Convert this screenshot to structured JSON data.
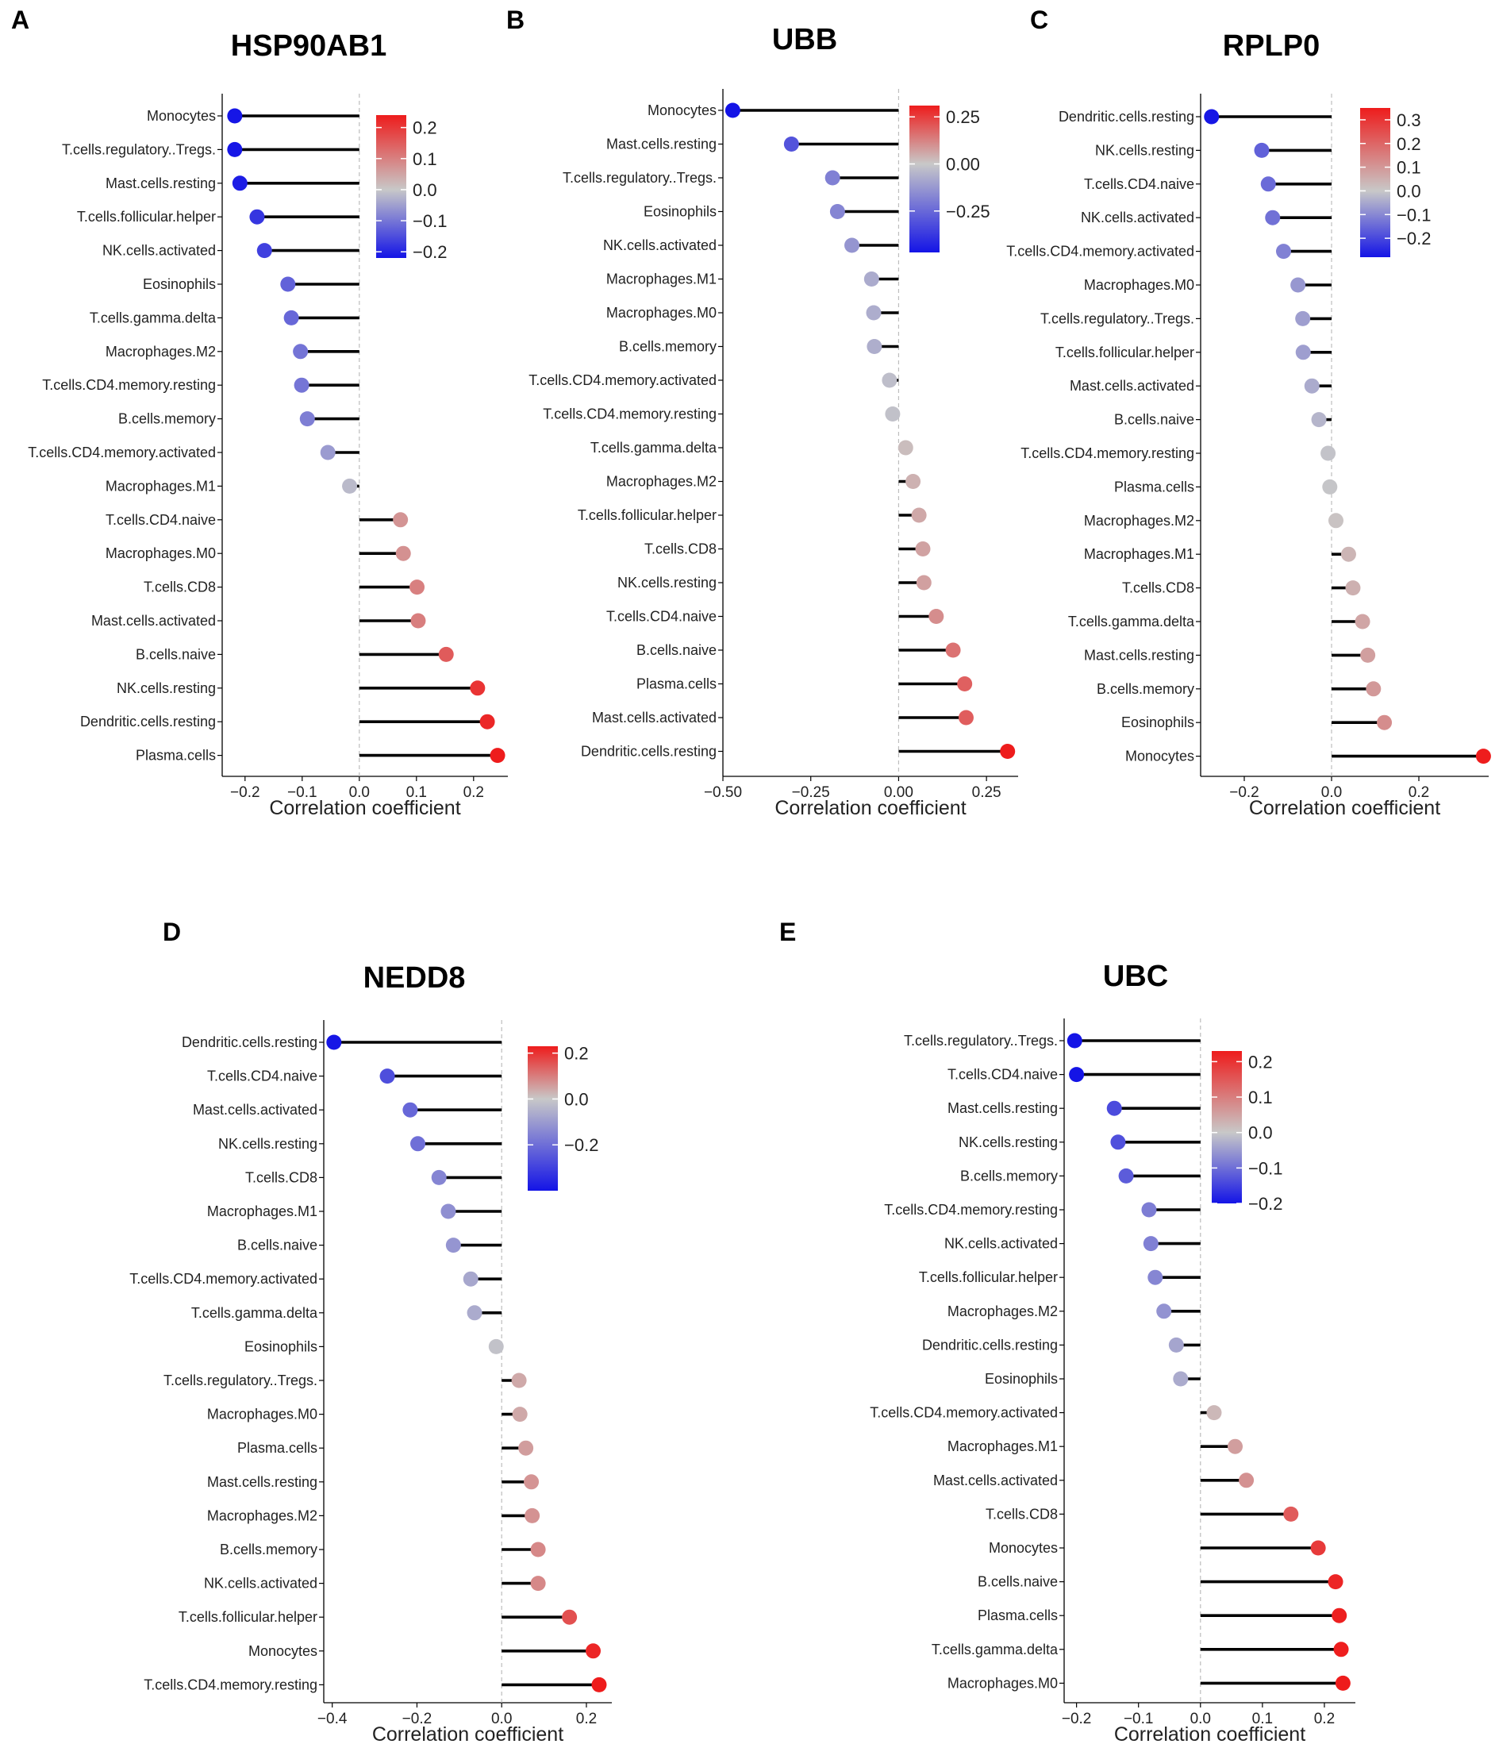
{
  "xlabel": "Correlation coefficient",
  "colors": {
    "low": "#1414e6",
    "mid": "#c8c8c8",
    "high": "#ee1c1c",
    "stick": "#000000",
    "zero_line": "#bdbdbd"
  },
  "chart_data": [
    {
      "panel": "A",
      "type": "lollipop",
      "title": "HSP90AB1",
      "xlim": [
        -0.24,
        0.26
      ],
      "xticks": [
        -0.2,
        -0.1,
        0.0,
        0.1,
        0.2
      ],
      "xtick_labels": [
        "−0.2",
        "−0.1",
        "0.0",
        "0.1",
        "0.2"
      ],
      "color_range": [
        -0.22,
        0.24
      ],
      "legend_ticks": [
        0.2,
        0.1,
        0.0,
        -0.1,
        -0.2
      ],
      "legend_labels": [
        "0.2",
        "0.1",
        "0.0",
        "−0.1",
        "−0.2"
      ],
      "legend_placement": "top-right",
      "categories": [
        "Monocytes",
        "T.cells.regulatory..Tregs.",
        "Mast.cells.resting",
        "T.cells.follicular.helper",
        "NK.cells.activated",
        "Eosinophils",
        "T.cells.gamma.delta",
        "Macrophages.M2",
        "T.cells.CD4.memory.resting",
        "B.cells.memory",
        "T.cells.CD4.memory.activated",
        "Macrophages.M1",
        "T.cells.CD4.naive",
        "Macrophages.M0",
        "T.cells.CD8",
        "Mast.cells.activated",
        "B.cells.naive",
        "NK.cells.resting",
        "Dendritic.cells.resting",
        "Plasma.cells"
      ],
      "values": [
        -0.218,
        -0.218,
        -0.209,
        -0.179,
        -0.166,
        -0.125,
        -0.119,
        -0.103,
        -0.101,
        -0.091,
        -0.055,
        -0.017,
        0.072,
        0.077,
        0.101,
        0.103,
        0.152,
        0.207,
        0.224,
        0.242
      ]
    },
    {
      "panel": "B",
      "type": "lollipop",
      "title": "UBB",
      "xlim": [
        -0.5,
        0.34
      ],
      "xticks": [
        -0.5,
        -0.25,
        0.0,
        0.25
      ],
      "xtick_labels": [
        "−0.50",
        "−0.25",
        "0.00",
        "0.25"
      ],
      "color_range": [
        -0.47,
        0.31
      ],
      "legend_ticks": [
        0.25,
        0.0,
        -0.25
      ],
      "legend_labels": [
        "0.25",
        "0.00",
        "−0.25"
      ],
      "legend_placement": "top-right",
      "categories": [
        "Monocytes",
        "Mast.cells.resting",
        "T.cells.regulatory..Tregs.",
        "Eosinophils",
        "NK.cells.activated",
        "Macrophages.M1",
        "Macrophages.M0",
        "B.cells.memory",
        "T.cells.CD4.memory.activated",
        "T.cells.CD4.memory.resting",
        "T.cells.gamma.delta",
        "Macrophages.M2",
        "T.cells.follicular.helper",
        "T.cells.CD8",
        "NK.cells.resting",
        "T.cells.CD4.naive",
        "B.cells.naive",
        "Plasma.cells",
        "Mast.cells.activated",
        "Dendritic.cells.resting"
      ],
      "values": [
        -0.472,
        -0.305,
        -0.188,
        -0.174,
        -0.133,
        -0.077,
        -0.071,
        -0.069,
        -0.026,
        -0.017,
        0.02,
        0.041,
        0.058,
        0.069,
        0.072,
        0.107,
        0.155,
        0.188,
        0.192,
        0.31
      ]
    },
    {
      "panel": "C",
      "type": "lollipop",
      "title": "RPLP0",
      "xlim": [
        -0.3,
        0.36
      ],
      "xticks": [
        -0.2,
        0.0,
        0.2
      ],
      "xtick_labels": [
        "−0.2",
        "0.0",
        "0.2"
      ],
      "color_range": [
        -0.28,
        0.35
      ],
      "legend_ticks": [
        0.3,
        0.2,
        0.1,
        0.0,
        -0.1,
        -0.2
      ],
      "legend_labels": [
        "0.3",
        "0.2",
        "0.1",
        "0.0",
        "−0.1",
        "−0.2"
      ],
      "legend_placement": "top-right",
      "categories": [
        "Dendritic.cells.resting",
        "NK.cells.resting",
        "T.cells.CD4.naive",
        "NK.cells.activated",
        "T.cells.CD4.memory.activated",
        "Macrophages.M0",
        "T.cells.regulatory..Tregs.",
        "T.cells.follicular.helper",
        "Mast.cells.activated",
        "B.cells.naive",
        "T.cells.CD4.memory.resting",
        "Plasma.cells",
        "Macrophages.M2",
        "Macrophages.M1",
        "T.cells.CD8",
        "T.cells.gamma.delta",
        "Mast.cells.resting",
        "B.cells.memory",
        "Eosinophils",
        "Monocytes"
      ],
      "values": [
        -0.275,
        -0.16,
        -0.145,
        -0.135,
        -0.11,
        -0.077,
        -0.066,
        -0.065,
        -0.045,
        -0.029,
        -0.008,
        -0.004,
        0.01,
        0.039,
        0.049,
        0.071,
        0.083,
        0.096,
        0.121,
        0.348
      ]
    },
    {
      "panel": "D",
      "type": "lollipop",
      "title": "NEDD8",
      "xlim": [
        -0.42,
        0.26
      ],
      "xticks": [
        -0.4,
        -0.2,
        0.0,
        0.2
      ],
      "xtick_labels": [
        "−0.4",
        "−0.2",
        "0.0",
        "0.2"
      ],
      "color_range": [
        -0.4,
        0.23
      ],
      "legend_ticks": [
        0.2,
        0.0,
        -0.2
      ],
      "legend_labels": [
        "0.2",
        "0.0",
        "−0.2"
      ],
      "legend_placement": "top-right",
      "categories": [
        "Dendritic.cells.resting",
        "T.cells.CD4.naive",
        "Mast.cells.activated",
        "NK.cells.resting",
        "T.cells.CD8",
        "Macrophages.M1",
        "B.cells.naive",
        "T.cells.CD4.memory.activated",
        "T.cells.gamma.delta",
        "Eosinophils",
        "T.cells.regulatory..Tregs.",
        "Macrophages.M0",
        "Plasma.cells",
        "Mast.cells.resting",
        "Macrophages.M2",
        "B.cells.memory",
        "NK.cells.activated",
        "T.cells.follicular.helper",
        "Monocytes",
        "T.cells.CD4.memory.resting"
      ],
      "values": [
        -0.396,
        -0.27,
        -0.216,
        -0.198,
        -0.148,
        -0.126,
        -0.114,
        -0.073,
        -0.064,
        -0.013,
        0.041,
        0.043,
        0.057,
        0.07,
        0.072,
        0.086,
        0.086,
        0.16,
        0.216,
        0.23
      ]
    },
    {
      "panel": "E",
      "type": "lollipop",
      "title": "UBC",
      "xlim": [
        -0.22,
        0.25
      ],
      "xticks": [
        -0.2,
        -0.1,
        0.0,
        0.1,
        0.2
      ],
      "xtick_labels": [
        "−0.2",
        "−0.1",
        "0.0",
        "0.1",
        "0.2"
      ],
      "color_range": [
        -0.2,
        0.23
      ],
      "legend_ticks": [
        0.2,
        0.1,
        0.0,
        -0.1,
        -0.2
      ],
      "legend_labels": [
        "0.2",
        "0.1",
        "0.0",
        "−0.1",
        "−0.2"
      ],
      "legend_placement": "top-right",
      "categories": [
        "T.cells.regulatory..Tregs.",
        "T.cells.CD4.naive",
        "Mast.cells.resting",
        "NK.cells.resting",
        "B.cells.memory",
        "T.cells.CD4.memory.resting",
        "NK.cells.activated",
        "T.cells.follicular.helper",
        "Macrophages.M2",
        "Dendritic.cells.resting",
        "Eosinophils",
        "T.cells.CD4.memory.activated",
        "Macrophages.M1",
        "Mast.cells.activated",
        "T.cells.CD8",
        "Monocytes",
        "B.cells.naive",
        "Plasma.cells",
        "T.cells.gamma.delta",
        "Macrophages.M0"
      ],
      "values": [
        -0.203,
        -0.2,
        -0.139,
        -0.133,
        -0.12,
        -0.083,
        -0.08,
        -0.073,
        -0.059,
        -0.039,
        -0.032,
        0.022,
        0.056,
        0.074,
        0.146,
        0.19,
        0.218,
        0.224,
        0.227,
        0.23
      ]
    }
  ]
}
